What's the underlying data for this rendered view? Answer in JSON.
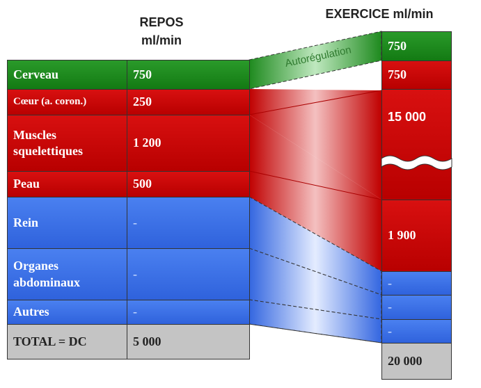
{
  "header": {
    "rest_title": "REPOS",
    "rest_unit": "ml/min",
    "exercise_title": "EXERCICE ml/min"
  },
  "rest_table": {
    "rows": [
      {
        "organ": "Cerveau",
        "flow": "750"
      },
      {
        "organ": "Cœur (a. coron.)",
        "flow": "250"
      },
      {
        "organ": "Muscles squelettiques",
        "flow": "1 200"
      },
      {
        "organ": "Peau",
        "flow": "500"
      },
      {
        "organ": "Rein",
        "flow": "-"
      },
      {
        "organ": "Organes abdominaux",
        "flow": "-"
      },
      {
        "organ": "Autres",
        "flow": "-"
      },
      {
        "organ": "TOTAL = DC",
        "flow": "5 000"
      }
    ]
  },
  "exercise_column": {
    "cells": [
      "750",
      "750",
      "15 000",
      "1 900",
      "-",
      "-",
      "-",
      "20 000"
    ]
  },
  "annotation": "Autorégulation"
}
